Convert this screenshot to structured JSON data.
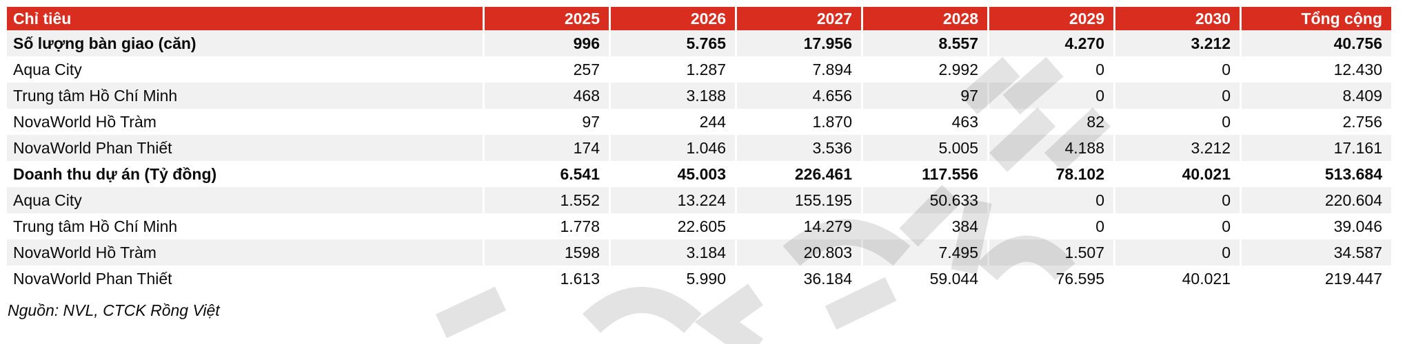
{
  "table": {
    "columns": [
      "Chỉ tiêu",
      "2025",
      "2026",
      "2027",
      "2028",
      "2029",
      "2030",
      "Tổng cộng"
    ],
    "rows": [
      {
        "label": "Số lượng bàn giao (căn)",
        "bold": true,
        "values": [
          "996",
          "5.765",
          "17.956",
          "8.557",
          "4.270",
          "3.212",
          "40.756"
        ]
      },
      {
        "label": "Aqua City",
        "bold": false,
        "values": [
          "257",
          "1.287",
          "7.894",
          "2.992",
          "0",
          "0",
          "12.430"
        ]
      },
      {
        "label": "Trung tâm Hồ Chí Minh",
        "bold": false,
        "values": [
          "468",
          "3.188",
          "4.656",
          "97",
          "0",
          "0",
          "8.409"
        ]
      },
      {
        "label": "NovaWorld Hồ Tràm",
        "bold": false,
        "values": [
          "97",
          "244",
          "1.870",
          "463",
          "82",
          "0",
          "2.756"
        ]
      },
      {
        "label": "NovaWorld Phan Thiết",
        "bold": false,
        "values": [
          "174",
          "1.046",
          "3.536",
          "5.005",
          "4.188",
          "3.212",
          "17.161"
        ]
      },
      {
        "label": "Doanh thu dự án (Tỷ đồng)",
        "bold": true,
        "values": [
          "6.541",
          "45.003",
          "226.461",
          "117.556",
          "78.102",
          "40.021",
          "513.684"
        ]
      },
      {
        "label": "Aqua City",
        "bold": false,
        "values": [
          "1.552",
          "13.224",
          "155.195",
          "50.633",
          "0",
          "0",
          "220.604"
        ]
      },
      {
        "label": "Trung tâm Hồ Chí Minh",
        "bold": false,
        "values": [
          "1.778",
          "22.605",
          "14.279",
          "384",
          "0",
          "0",
          "39.046"
        ]
      },
      {
        "label": "NovaWorld Hồ Tràm",
        "bold": false,
        "values": [
          "1598",
          "3.184",
          "20.803",
          "7.495",
          "1.507",
          "0",
          "34.587"
        ]
      },
      {
        "label": "NovaWorld Phan Thiết",
        "bold": false,
        "values": [
          "1.613",
          "5.990",
          "36.184",
          "59.044",
          "76.595",
          "40.021",
          "219.447"
        ]
      }
    ]
  },
  "source_note": "Nguồn: NVL, CTCK Rồng Việt",
  "colors": {
    "header_bg": "#d92d20",
    "header_text": "#ffffff",
    "stripe_bg": "#f1f1f1",
    "body_text": "#0a0a0a",
    "watermark": "#e3e3e3"
  }
}
